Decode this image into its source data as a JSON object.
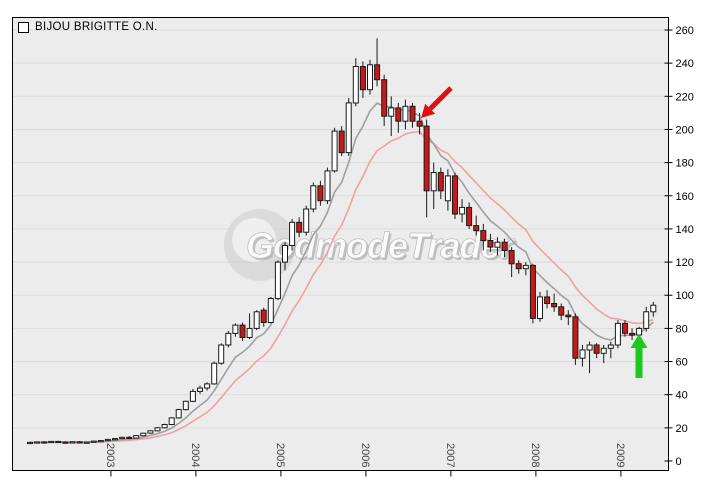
{
  "window": {
    "title": "BIJOU BRIGITTE O.N."
  },
  "watermark": {
    "text": "GodmodeTrader",
    "disc_center": [
      260,
      245
    ],
    "disc_radius": 36,
    "text_anchor": [
      246,
      258
    ],
    "font_size": 36
  },
  "colors": {
    "page_bg": "#ffffff",
    "plot_bg": "#ececec",
    "grid": "#dcdcdc",
    "border": "#000000",
    "bull_fill": "#ffffff",
    "bear_fill": "#c81818",
    "candle_stroke": "#1a1a1a",
    "ma_fast": "#9f9f9f",
    "ma_slow": "#f2a0a0",
    "arrow_red": "#e11010",
    "arrow_green": "#1dc81d",
    "axis_label": "#000000",
    "year_label": "#444444",
    "watermark_gray": "#c8c8c8"
  },
  "chart_data": {
    "type": "candlestick",
    "title": "BIJOU BRIGITTE O.N.",
    "frequency": "monthly",
    "series_start": "2002-02",
    "ylim": [
      0,
      273
    ],
    "grid": true,
    "y_ticks": [
      0,
      20,
      40,
      60,
      80,
      100,
      120,
      140,
      160,
      180,
      200,
      220,
      240,
      260
    ],
    "x_year_ticks": [
      {
        "label": "2003",
        "month": 11
      },
      {
        "label": "2004",
        "month": 23
      },
      {
        "label": "2005",
        "month": 35
      },
      {
        "label": "2006",
        "month": 47
      },
      {
        "label": "2007",
        "month": 59
      },
      {
        "label": "2008",
        "month": 71
      },
      {
        "label": "2009",
        "month": 83
      }
    ],
    "indicators": [
      {
        "name": "ema-fast",
        "type": "ema",
        "period": 7,
        "color_key": "ma_fast"
      },
      {
        "name": "ema-slow",
        "type": "ema",
        "period": 14,
        "color_key": "ma_slow"
      }
    ],
    "candles": [
      [
        11.0,
        11.6,
        10.6,
        11.2
      ],
      [
        11.2,
        11.8,
        10.9,
        11.5
      ],
      [
        11.5,
        11.9,
        11.0,
        11.3
      ],
      [
        11.3,
        12.0,
        11.1,
        11.8
      ],
      [
        11.8,
        12.1,
        11.2,
        11.4
      ],
      [
        11.4,
        11.9,
        10.8,
        11.2
      ],
      [
        11.2,
        11.8,
        10.9,
        11.6
      ],
      [
        11.6,
        12.0,
        10.8,
        11.0
      ],
      [
        11.0,
        11.7,
        10.5,
        11.4
      ],
      [
        11.4,
        12.2,
        11.2,
        12.0
      ],
      [
        12.0,
        12.6,
        11.6,
        12.3
      ],
      [
        12.3,
        13.2,
        12.0,
        13.0
      ],
      [
        13.0,
        13.8,
        12.6,
        13.5
      ],
      [
        13.5,
        14.6,
        13.2,
        14.3
      ],
      [
        14.3,
        15.0,
        13.4,
        13.8
      ],
      [
        13.8,
        15.6,
        13.6,
        15.3
      ],
      [
        15.3,
        17.0,
        15.0,
        16.8
      ],
      [
        16.8,
        18.6,
        16.4,
        18.2
      ],
      [
        18.2,
        20.4,
        17.9,
        20.0
      ],
      [
        20.0,
        22.5,
        19.6,
        22.0
      ],
      [
        22.0,
        26.5,
        21.6,
        26.0
      ],
      [
        26.0,
        31.5,
        25.5,
        31.0
      ],
      [
        31.0,
        36.5,
        30.5,
        36.0
      ],
      [
        36.0,
        43.5,
        35.5,
        42.0
      ],
      [
        42.0,
        45.5,
        40.5,
        44.0
      ],
      [
        44.0,
        47.5,
        42.5,
        46.5
      ],
      [
        46.5,
        60.0,
        46.0,
        59.0
      ],
      [
        59.0,
        71.0,
        58.0,
        70.0
      ],
      [
        70.0,
        78.5,
        68.5,
        77.0
      ],
      [
        77.0,
        83.0,
        75.0,
        82.0
      ],
      [
        82.0,
        83.5,
        72.5,
        74.5
      ],
      [
        74.5,
        89.0,
        73.5,
        80.0
      ],
      [
        80.0,
        91.0,
        79.0,
        90.0
      ],
      [
        91.0,
        92.5,
        81.0,
        83.5
      ],
      [
        83.5,
        99.0,
        83.0,
        98.0
      ],
      [
        98.0,
        121.0,
        97.0,
        120.0
      ],
      [
        120.0,
        132.0,
        115.0,
        130.0
      ],
      [
        130.0,
        146.0,
        127.0,
        144.0
      ],
      [
        144.0,
        147.0,
        135.0,
        138.0
      ],
      [
        138.0,
        154.0,
        136.0,
        152.0
      ],
      [
        152.0,
        168.0,
        150.0,
        166.0
      ],
      [
        166.0,
        169.0,
        154.0,
        157.0
      ],
      [
        157.0,
        177.0,
        155.0,
        175.0
      ],
      [
        175.0,
        201.0,
        174.0,
        199.0
      ],
      [
        199.0,
        202.0,
        184.0,
        186.0
      ],
      [
        186.0,
        219.0,
        184.0,
        216.0
      ],
      [
        216.0,
        243.0,
        214.0,
        238.0
      ],
      [
        238.0,
        241.0,
        219.0,
        224.0
      ],
      [
        224.0,
        242.0,
        221.0,
        239.0
      ],
      [
        239.0,
        255.0,
        226.0,
        230.0
      ],
      [
        230.0,
        233.0,
        202.0,
        208.0
      ],
      [
        208.0,
        220.0,
        196.0,
        213.0
      ],
      [
        213.0,
        216.0,
        198.0,
        205.0
      ],
      [
        205.0,
        218.0,
        200.0,
        214.0
      ],
      [
        214.0,
        216.0,
        201.0,
        205.0
      ],
      [
        205.0,
        210.0,
        197.0,
        202.0
      ],
      [
        202.0,
        206.0,
        147.0,
        163.0
      ],
      [
        163.0,
        180.0,
        152.0,
        174.0
      ],
      [
        174.0,
        177.0,
        158.0,
        163.0
      ],
      [
        157.0,
        176.0,
        151.0,
        172.0
      ],
      [
        172.0,
        174.0,
        146.0,
        149.0
      ],
      [
        149.0,
        158.0,
        144.0,
        153.0
      ],
      [
        153.0,
        156.0,
        140.0,
        142.0
      ],
      [
        142.0,
        148.0,
        136.0,
        139.0
      ],
      [
        139.0,
        143.0,
        127.0,
        133.0
      ],
      [
        133.0,
        137.0,
        126.0,
        129.0
      ],
      [
        129.0,
        135.0,
        124.0,
        132.0
      ],
      [
        132.0,
        134.0,
        123.0,
        127.0
      ],
      [
        127.0,
        129.0,
        111.0,
        119.0
      ],
      [
        119.0,
        121.0,
        113.0,
        116.0
      ],
      [
        116.0,
        120.0,
        112.0,
        118.0
      ],
      [
        118.0,
        119.0,
        83.0,
        86.0
      ],
      [
        86.0,
        102.0,
        84.0,
        99.0
      ],
      [
        99.0,
        103.0,
        92.0,
        95.0
      ],
      [
        95.0,
        101.0,
        90.0,
        93.0
      ],
      [
        93.0,
        95.0,
        85.0,
        88.0
      ],
      [
        88.0,
        91.0,
        82.0,
        87.0
      ],
      [
        87.0,
        89.0,
        58.0,
        62.0
      ],
      [
        62.0,
        70.0,
        57.0,
        67.0
      ],
      [
        67.0,
        72.0,
        53.0,
        70.0
      ],
      [
        70.0,
        71.0,
        62.0,
        65.0
      ],
      [
        65.0,
        70.0,
        59.0,
        68.0
      ],
      [
        68.0,
        72.0,
        62.0,
        70.0
      ],
      [
        70.0,
        85.0,
        68.0,
        83.0
      ],
      [
        83.0,
        85.0,
        75.0,
        77.0
      ],
      [
        77.0,
        80.0,
        73.0,
        76.0
      ],
      [
        76.0,
        81.0,
        74.0,
        80.0
      ],
      [
        80.0,
        93.0,
        78.0,
        90.0
      ],
      [
        90.0,
        96.0,
        87.0,
        94.0
      ]
    ],
    "annotations": [
      {
        "id": "red-down-arrow",
        "shape": "arrow",
        "color": "#e11010",
        "tail": [
          451,
          88
        ],
        "tip": [
          421,
          118
        ],
        "line_width": 5,
        "head_length": 13,
        "head_width": 14
      },
      {
        "id": "green-up-arrow",
        "shape": "arrow",
        "color": "#1dc81d",
        "tail": [
          639,
          378
        ],
        "tip": [
          639,
          334
        ],
        "line_width": 7,
        "head_length": 14,
        "head_width": 17
      }
    ]
  }
}
